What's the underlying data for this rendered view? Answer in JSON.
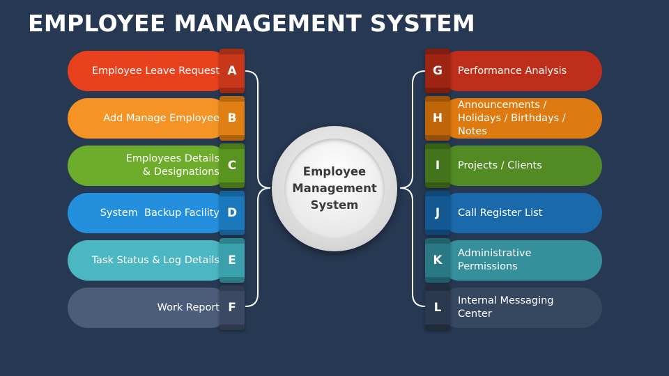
{
  "title": "EMPLOYEE MANAGEMENT SYSTEM",
  "hub": {
    "label": "Employee Management System"
  },
  "left_items": [
    {
      "letter": "A",
      "label": "Employee Leave Request",
      "color": "#e8411e",
      "tab_color": "#c9371a"
    },
    {
      "letter": "B",
      "label": "Add Manage Employee",
      "color": "#f59425",
      "tab_color": "#e07f14"
    },
    {
      "letter": "C",
      "label": "Employees Details & Designations",
      "color": "#6eac2c",
      "tab_color": "#5a9420"
    },
    {
      "letter": "D",
      "label": "System  Backup Facility",
      "color": "#2490dd",
      "tab_color": "#1c78bd"
    },
    {
      "letter": "E",
      "label": "Task Status & Log Details",
      "color": "#4ab7c2",
      "tab_color": "#3aa0ab"
    },
    {
      "letter": "F",
      "label": "Work Report",
      "color": "#4b5d78",
      "tab_color": "#3b4a62"
    }
  ],
  "right_items": [
    {
      "letter": "G",
      "label": "Performance Analysis",
      "color": "#be2e1a",
      "tab_color": "#9e2514"
    },
    {
      "letter": "H",
      "label": "Announcements / Holidays / Birthdays / Notes",
      "color": "#df7a10",
      "tab_color": "#c0660a"
    },
    {
      "letter": "I",
      "label": "Projects / Clients",
      "color": "#528a24",
      "tab_color": "#43741b"
    },
    {
      "letter": "J",
      "label": "Call Register List",
      "color": "#1a6aab",
      "tab_color": "#145892"
    },
    {
      "letter": "K",
      "label": "Administrative Permissions",
      "color": "#35909c",
      "tab_color": "#2a7883"
    },
    {
      "letter": "L",
      "label": "Internal Messaging Center",
      "color": "#364760",
      "tab_color": "#2a394e"
    }
  ]
}
